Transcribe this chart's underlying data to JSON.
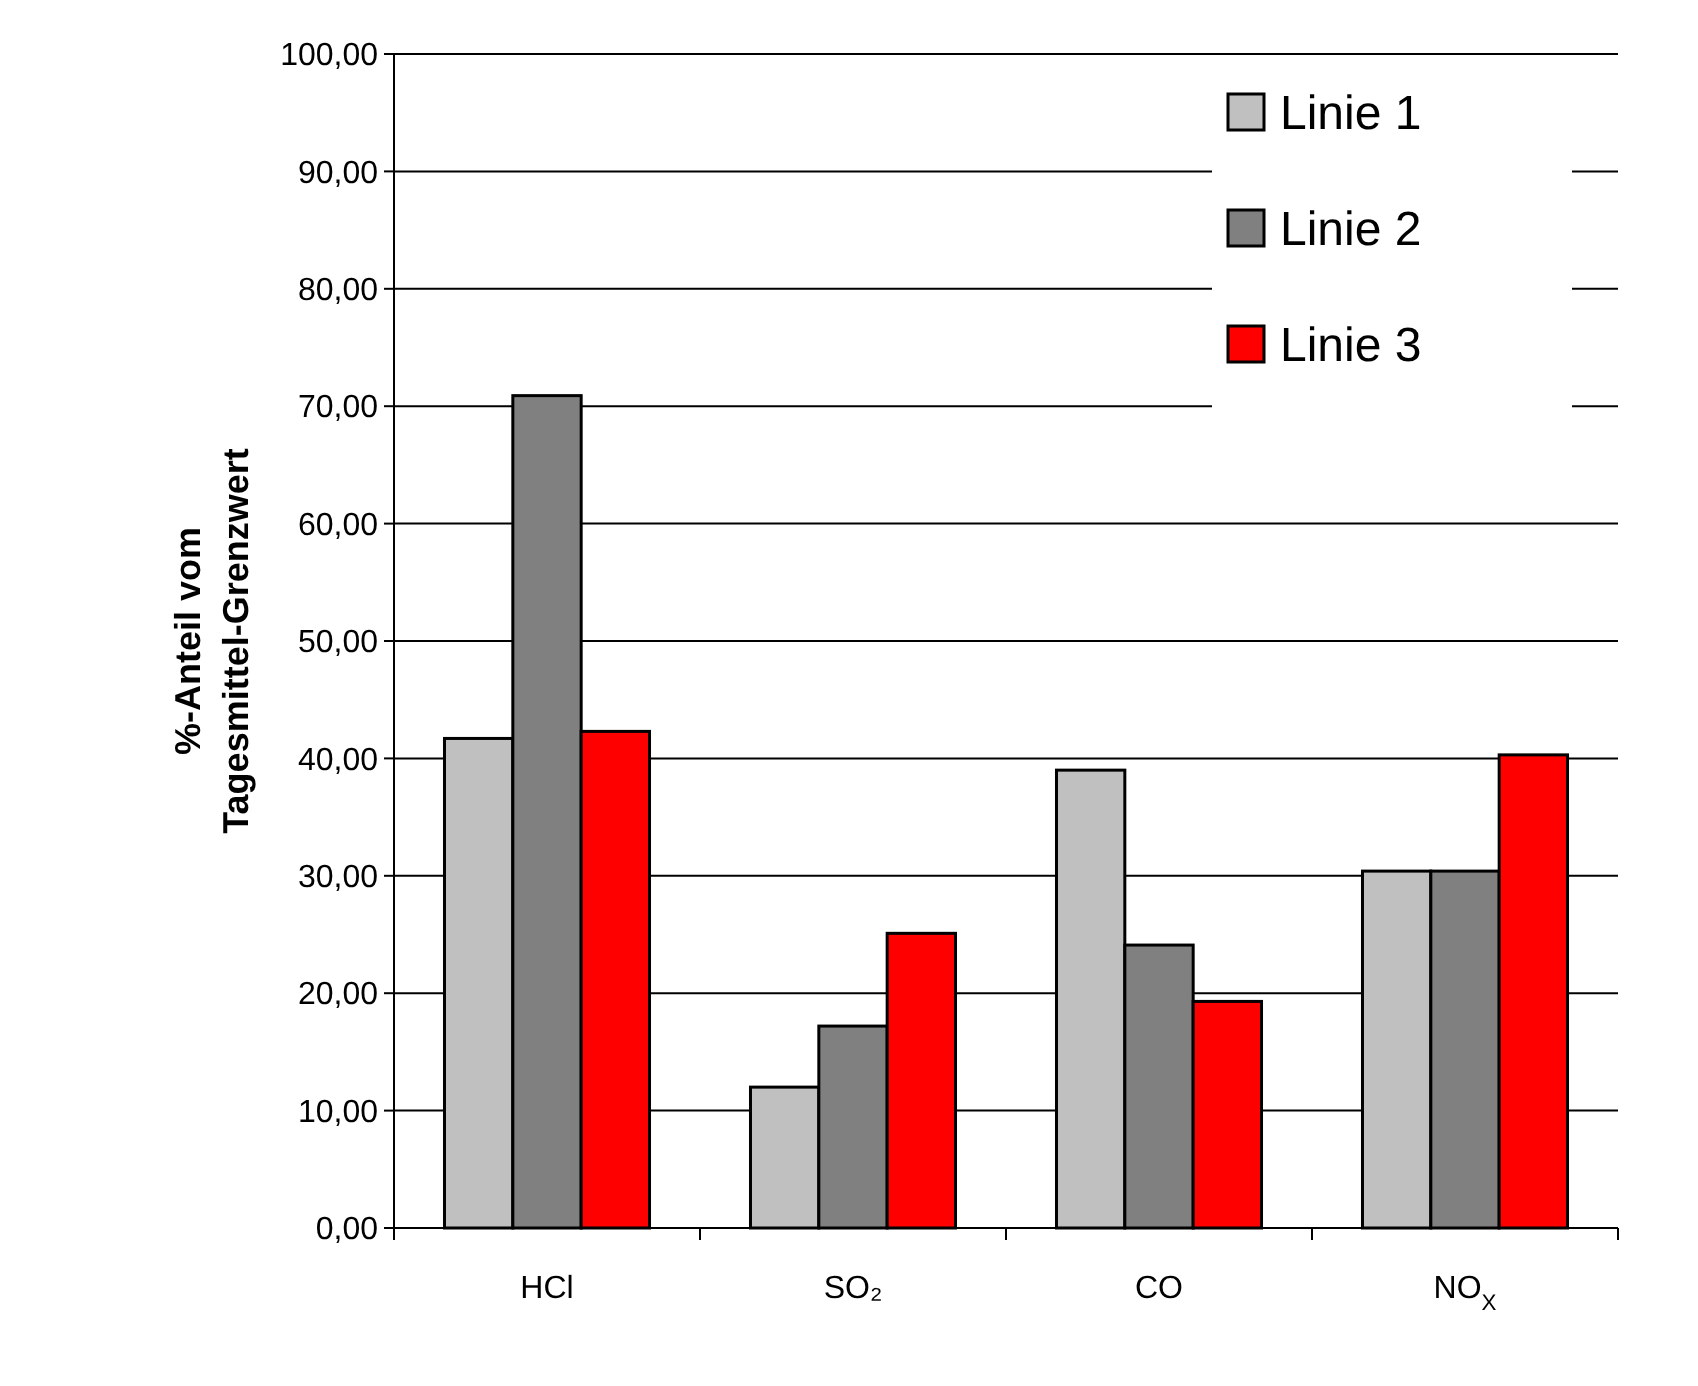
{
  "chart_data": {
    "type": "bar",
    "ylabel": "%-Anteil vom\nTagesmittel-Grenzwert",
    "categories": [
      "HCl",
      "SO₂",
      "CO",
      "NO$_{X}$"
    ],
    "series": [
      {
        "name": "Linie 1",
        "color": "#c0c0c0",
        "values": [
          41.7,
          12.0,
          39.0,
          30.4
        ]
      },
      {
        "name": "Linie 2",
        "color": "#808080",
        "values": [
          70.9,
          17.2,
          24.1,
          30.4
        ]
      },
      {
        "name": "Linie 3",
        "color": "#ff0000",
        "values": [
          42.3,
          25.1,
          19.3,
          40.3
        ]
      }
    ],
    "ylim": [
      0,
      100
    ],
    "yticks": [
      {
        "value": 0,
        "label": "0,00"
      },
      {
        "value": 10,
        "label": "10,00"
      },
      {
        "value": 20,
        "label": "20,00"
      },
      {
        "value": 30,
        "label": "30,00"
      },
      {
        "value": 40,
        "label": "40,00"
      },
      {
        "value": 50,
        "label": "50,00"
      },
      {
        "value": 60,
        "label": "60,00"
      },
      {
        "value": 70,
        "label": "70,00"
      },
      {
        "value": 80,
        "label": "80,00"
      },
      {
        "value": 90,
        "label": "90,00"
      },
      {
        "value": 100,
        "label": "100,00"
      }
    ],
    "grid": "y",
    "legend": "top right"
  }
}
